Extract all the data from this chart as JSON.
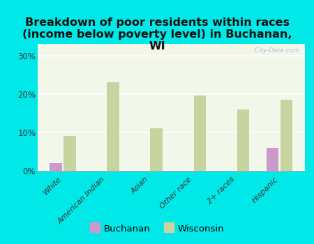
{
  "title": "Breakdown of poor residents within races\n(income below poverty level) in Buchanan,\nWI",
  "categories": [
    "White",
    "American Indian",
    "Asian",
    "Other race",
    "2+ races",
    "Hispanic"
  ],
  "buchanan_values": [
    2.0,
    0.0,
    0.0,
    0.0,
    0.0,
    6.0
  ],
  "wisconsin_values": [
    9.0,
    23.0,
    11.0,
    19.5,
    16.0,
    18.5
  ],
  "buchanan_color": "#cc99cc",
  "wisconsin_color": "#c8d4a0",
  "bg_color": "#00e8e8",
  "plot_bg_top": "#f2f7ea",
  "plot_bg_bottom": "#e8f0d8",
  "ylim": [
    0,
    33
  ],
  "yticks": [
    0,
    10,
    20,
    30
  ],
  "ytick_labels": [
    "0%",
    "10%",
    "20%",
    "30%"
  ],
  "bar_width": 0.28,
  "bar_gap": 0.04,
  "title_fontsize": 11.5,
  "title_color": "#111111",
  "watermark": "  City-Data.com",
  "legend_buchanan": "Buchanan",
  "legend_wisconsin": "Wisconsin"
}
